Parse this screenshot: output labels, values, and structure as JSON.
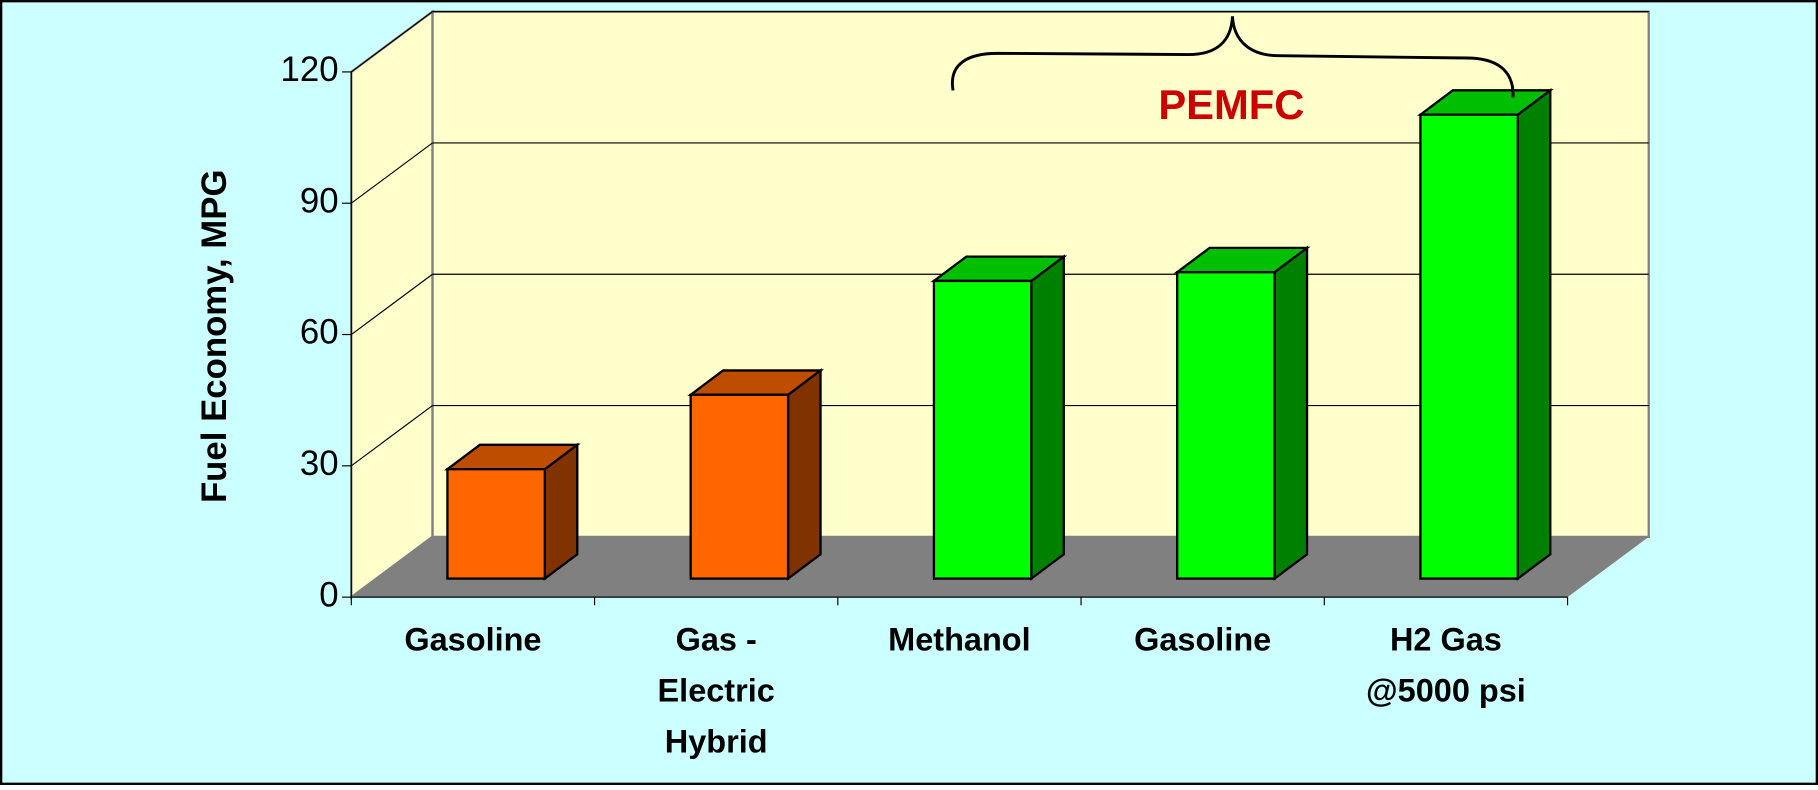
{
  "chart_data": {
    "type": "bar3d",
    "y_label": "Fuel Economy, MPG",
    "categories": [
      "Gasoline",
      "Gas - Electric Hybrid",
      "Methanol",
      "Gasoline",
      "H2 Gas @5000 psi"
    ],
    "values": [
      25,
      42,
      68,
      70,
      106
    ],
    "colors": [
      "#ff6600",
      "#ff6600",
      "#00ff00",
      "#00ff00",
      "#00ff00"
    ],
    "ylim": [
      0,
      120
    ],
    "yticks": [
      0,
      30,
      60,
      90,
      120
    ],
    "grid": true,
    "annotation": "PEMFC"
  }
}
